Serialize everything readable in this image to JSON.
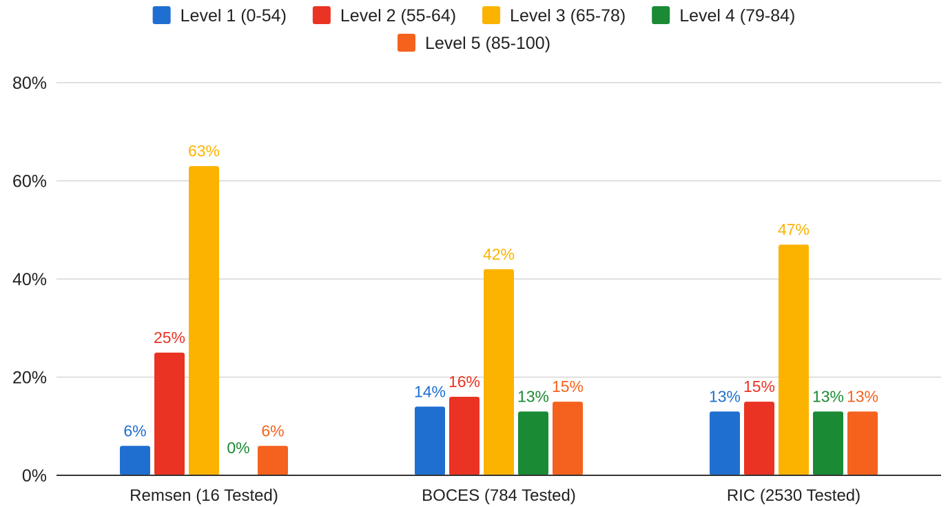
{
  "chart_data": {
    "type": "bar",
    "categories": [
      "Remsen (16 Tested)",
      "BOCES (784 Tested)",
      "RIC (2530 Tested)"
    ],
    "series": [
      {
        "name": "Level 1 (0-54)",
        "color": "#1f6fd0",
        "values": [
          6,
          14,
          13
        ],
        "labels": [
          "6%",
          "14%",
          "13%"
        ]
      },
      {
        "name": "Level 2 (55-64)",
        "color": "#ea3323",
        "values": [
          25,
          16,
          15
        ],
        "labels": [
          "25%",
          "16%",
          "15%"
        ]
      },
      {
        "name": "Level 3 (65-78)",
        "color": "#fbb300",
        "values": [
          63,
          42,
          47
        ],
        "labels": [
          "63%",
          "42%",
          "47%"
        ]
      },
      {
        "name": "Level 4 (79-84)",
        "color": "#1a8a34",
        "values": [
          0,
          13,
          13
        ],
        "labels": [
          "0%",
          "13%",
          "13%"
        ]
      },
      {
        "name": "Level 5 (85-100)",
        "color": "#f4621e",
        "values": [
          6,
          15,
          13
        ],
        "labels": [
          "6%",
          "15%",
          "13%"
        ]
      }
    ],
    "yticks": [
      "0%",
      "20%",
      "40%",
      "60%",
      "80%"
    ],
    "ylim": [
      0,
      80
    ],
    "grid": true,
    "legend_position": "top"
  }
}
